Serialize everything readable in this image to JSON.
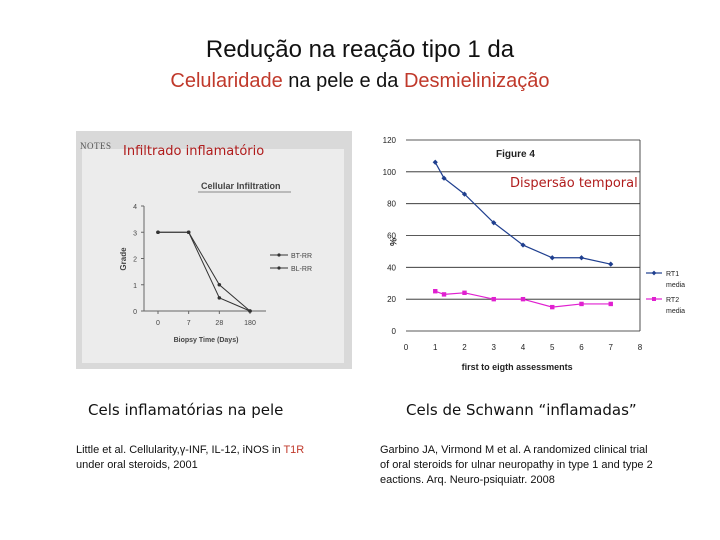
{
  "slide": {
    "title_line1": "Redução na reação tipo 1 da",
    "title_line2_part1": "Celularidade",
    "title_line2_part2": " na pele e da ",
    "title_line2_part3": "Desmielinização"
  },
  "left_figure": {
    "notes_label": "NOTES",
    "overlay_label": "Infiltrado inflamatório",
    "caption": "Cels inflamatórias na pele",
    "reference_part1": "Little et al. Cellularity,γ-INF, IL-12, iNOS in ",
    "reference_highlight": "T1R",
    "reference_line2": "under oral steroids, 2001"
  },
  "right_figure": {
    "overlay_label": "Dispersão temporal",
    "caption": "Cels de Schwann “inflamadas”",
    "reference_line1": "Garbino JA, Virmond M  et al. A randomized clinical trial",
    "reference_line2": "of oral steroids for ulnar neuropathy in type 1 and type 2",
    "reference_line3": "eactions. Arq. Neuro-psiquiatr. 2008"
  },
  "chart_data": [
    {
      "type": "line",
      "title": "Cellular Infiltration",
      "xlabel": "Biopsy Time (Days)",
      "ylabel": "Grade",
      "categories": [
        "0",
        "7",
        "28",
        "180"
      ],
      "ylim": [
        0,
        4
      ],
      "yticks": [
        "0",
        "1",
        "2",
        "3",
        "4"
      ],
      "series": [
        {
          "name": "BT-RR",
          "values": [
            3,
            3,
            1,
            0
          ],
          "color": "#333333"
        },
        {
          "name": "BL-RR",
          "values": [
            3,
            3,
            0.5,
            0
          ],
          "color": "#333333"
        }
      ],
      "legend": "right"
    },
    {
      "type": "line",
      "title": "Figure 4",
      "xlabel": "first to eigth assessments",
      "ylabel": "%",
      "x": [
        0,
        1,
        2,
        3,
        4,
        5,
        6,
        7,
        8
      ],
      "xticks": [
        "0",
        "1",
        "2",
        "3",
        "4",
        "5",
        "6",
        "7",
        "8"
      ],
      "ylim": [
        0,
        120
      ],
      "yticks": [
        "0",
        "20",
        "40",
        "60",
        "80",
        "100",
        "120"
      ],
      "grid": "horizontal",
      "series": [
        {
          "name": "RT1 media",
          "x": [
            1,
            1.3,
            2,
            3,
            4,
            5,
            6,
            7
          ],
          "values": [
            106,
            96,
            86,
            68,
            54,
            46,
            46,
            42
          ],
          "color": "#1f3f8f",
          "marker": "diamond"
        },
        {
          "name": "RT2 media",
          "x": [
            1,
            1.3,
            2,
            3,
            4,
            5,
            6,
            7
          ],
          "values": [
            25,
            23,
            24,
            20,
            20,
            15,
            17,
            17
          ],
          "color": "#e020d0",
          "marker": "square"
        }
      ],
      "legend": "right"
    }
  ]
}
